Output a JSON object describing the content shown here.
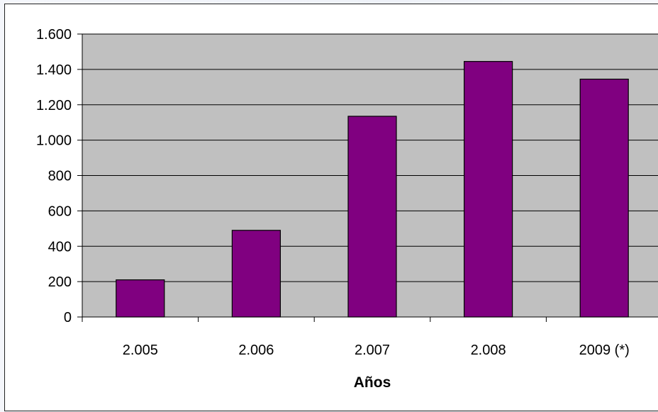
{
  "chart_data": {
    "type": "bar",
    "title": "",
    "xlabel": "Años",
    "ylabel": "",
    "categories": [
      "2.005",
      "2.006",
      "2.007",
      "2.008",
      "2009 (*)"
    ],
    "values": [
      210,
      490,
      1135,
      1445,
      1345
    ],
    "ylim": [
      0,
      1600
    ],
    "yticks": [
      0,
      200,
      400,
      600,
      800,
      1000,
      1200,
      1400,
      1600
    ],
    "ytick_labels": [
      "0",
      "200",
      "400",
      "600",
      "800",
      "1.000",
      "1.200",
      "1.400",
      "1.600"
    ],
    "grid": true,
    "legend": "none",
    "colors": {
      "bar": "#800080",
      "plot_background": "#c0c0c0",
      "gridline": "#000000"
    }
  }
}
